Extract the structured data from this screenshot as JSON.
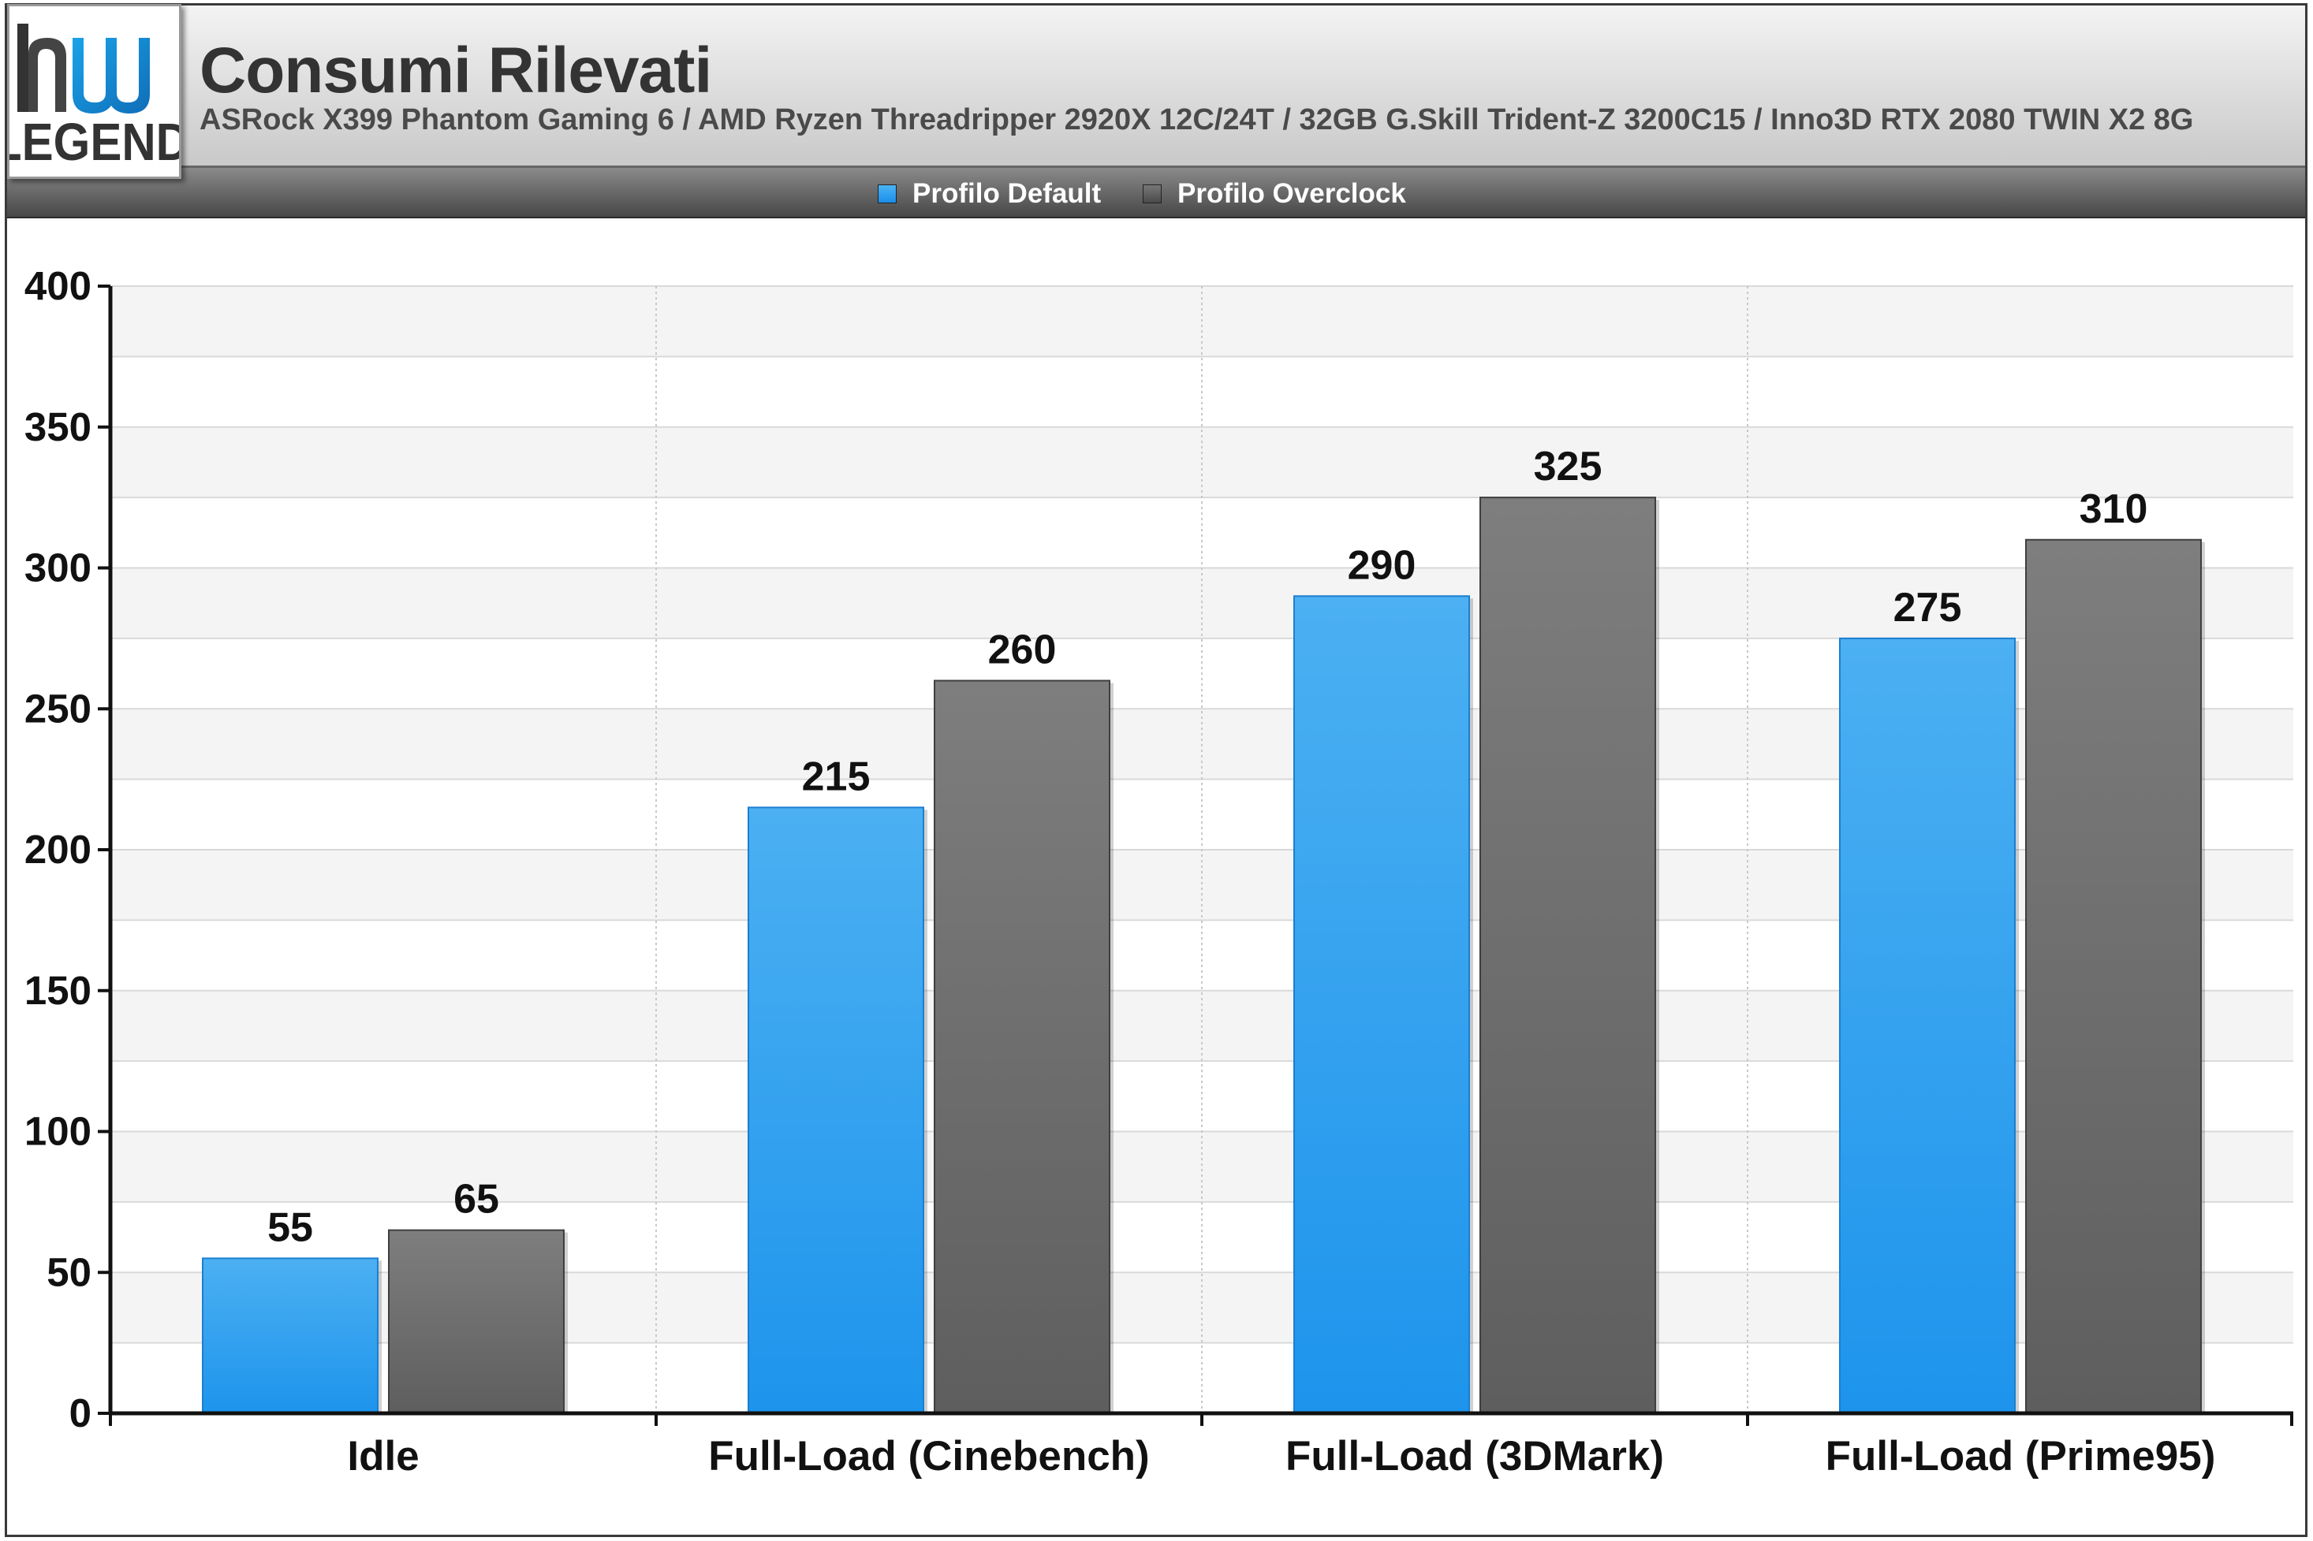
{
  "logo": {
    "mark": "hu",
    "text": "LEGEND"
  },
  "header": {
    "title": "Consumi Rilevati",
    "subtitle": "ASRock X399 Phantom Gaming 6 / AMD Ryzen Threadripper 2920X 12C/24T / 32GB G.Skill Trident-Z 3200C15 / Inno3D RTX 2080 TWIN X2 8G"
  },
  "legend": [
    {
      "label": "Profilo Default",
      "color": "#2196f0"
    },
    {
      "label": "Profilo Overclock",
      "color": "#666666"
    }
  ],
  "chart_data": {
    "type": "bar",
    "title": "Consumi Rilevati",
    "subtitle": "ASRock X399 Phantom Gaming 6 / AMD Ryzen Threadripper 2920X 12C/24T / 32GB G.Skill Trident-Z 3200C15 / Inno3D RTX 2080 TWIN X2 8G",
    "xlabel": "",
    "ylabel": "",
    "categories": [
      "Idle",
      "Full-Load (Cinebench)",
      "Full-Load (3DMark)",
      "Full-Load (Prime95)"
    ],
    "series": [
      {
        "name": "Profilo Default",
        "values": [
          55,
          215,
          290,
          275
        ],
        "color": "#2196f0"
      },
      {
        "name": "Profilo Overclock",
        "values": [
          65,
          260,
          325,
          310
        ],
        "color": "#666666"
      }
    ],
    "ylim": [
      0,
      400
    ],
    "yticks": [
      0,
      50,
      100,
      150,
      200,
      250,
      300,
      350,
      400
    ],
    "grid": true,
    "legend_position": "top-center",
    "data_labels": true
  }
}
